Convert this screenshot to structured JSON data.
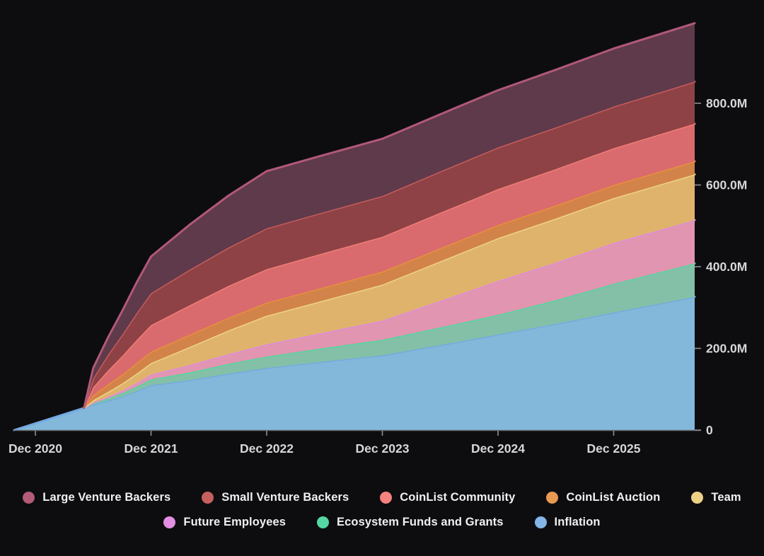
{
  "chart_data": {
    "type": "area",
    "stacked": true,
    "title": "",
    "background": "#0d0d10",
    "grid": false,
    "legend_position": "bottom",
    "x_unit": "years since Dec 2020 (chart spans ~Oct 2020 to mid 2026)",
    "x": [
      -0.183,
      0.42,
      0.5,
      0.625,
      0.75,
      0.875,
      1.0,
      1.33,
      1.67,
      2.0,
      2.5,
      3.0,
      3.5,
      4.0,
      4.5,
      5.0,
      5.7
    ],
    "x_ticks": [
      {
        "t": 0,
        "label": "Dec 2020"
      },
      {
        "t": 1,
        "label": "Dec 2021"
      },
      {
        "t": 2,
        "label": "Dec 2022"
      },
      {
        "t": 3,
        "label": "Dec 2023"
      },
      {
        "t": 4,
        "label": "Dec 2024"
      },
      {
        "t": 5,
        "label": "Dec 2025"
      }
    ],
    "y_ticks": [
      {
        "v": 0,
        "label": "0"
      },
      {
        "v": 200,
        "label": "200.0M"
      },
      {
        "v": 400,
        "label": "400.0M"
      },
      {
        "v": 600,
        "label": "600.0M"
      },
      {
        "v": 800,
        "label": "800.0M"
      }
    ],
    "y_axis_side": "right",
    "y_max_total_M": 996,
    "series_note": "values in millions of tokens, stacked bottom-to-top in array order",
    "series": [
      {
        "name": "Inflation",
        "swatch": "#83b5e9",
        "fill": "#83b8da",
        "line": "#75aae1",
        "values": [
          0,
          54,
          62,
          72,
          82,
          95,
          110,
          122,
          138,
          152,
          168,
          183,
          208,
          234,
          260,
          288,
          326
        ]
      },
      {
        "name": "Ecosystem Funds and Grants",
        "swatch": "#55d7a3",
        "fill": "#84c0a7",
        "line": "#52d7a0",
        "values": [
          0,
          0,
          3,
          5,
          8,
          11,
          14,
          19,
          24,
          28,
          33,
          38,
          43,
          48,
          58,
          70,
          82
        ]
      },
      {
        "name": "Future Employees",
        "swatch": "#e28fe2",
        "fill": "#e295b1",
        "line": "#dd8ddc",
        "values": [
          0,
          0,
          2,
          4,
          6,
          9,
          12,
          18,
          24,
          30,
          38,
          47,
          65,
          83,
          92,
          100,
          106
        ]
      },
      {
        "name": "Team",
        "swatch": "#edd285",
        "fill": "#e0b36d",
        "line": "#ecd483",
        "values": [
          0,
          0,
          6,
          12,
          18,
          23,
          28,
          44,
          58,
          70,
          79,
          88,
          97,
          105,
          108,
          110,
          112
        ]
      },
      {
        "name": "CoinList Auction",
        "swatch": "#e89a52",
        "fill": "#d2834a",
        "line": "#e88f3d",
        "values": [
          0,
          0,
          12,
          18,
          22,
          26,
          28,
          30,
          31,
          32,
          32,
          32,
          32,
          32,
          32,
          32,
          32
        ]
      },
      {
        "name": "CoinList Community",
        "swatch": "#f5827c",
        "fill": "#d96b6e",
        "line": "#f17d76",
        "values": [
          0,
          0,
          20,
          34,
          45,
          56,
          65,
          72,
          78,
          82,
          84,
          85,
          87,
          88,
          89,
          90,
          92
        ]
      },
      {
        "name": "Small Venture Backers",
        "swatch": "#c6605e",
        "fill": "#8e4246",
        "line": "#c75c5b",
        "values": [
          0,
          0,
          22,
          38,
          52,
          66,
          78,
          87,
          94,
          100,
          100,
          100,
          101,
          102,
          102,
          102,
          103
        ]
      },
      {
        "name": "Large Venture Backers",
        "swatch": "#b25b76",
        "fill": "#5e3a4b",
        "line": "#b25878",
        "values": [
          0,
          0,
          25,
          42,
          58,
          75,
          90,
          110,
          127,
          140,
          140,
          140,
          140,
          140,
          141,
          142,
          143
        ]
      }
    ],
    "legend_rows": [
      [
        "Large Venture Backers",
        "Small Venture Backers",
        "CoinList Community",
        "CoinList Auction",
        "Team"
      ],
      [
        "Future Employees",
        "Ecosystem Funds and Grants",
        "Inflation"
      ]
    ],
    "axis_style": {
      "axis_line_color": "#66666c",
      "tick_color": "#8f8f94",
      "label_color": "#d7d7d7"
    }
  }
}
